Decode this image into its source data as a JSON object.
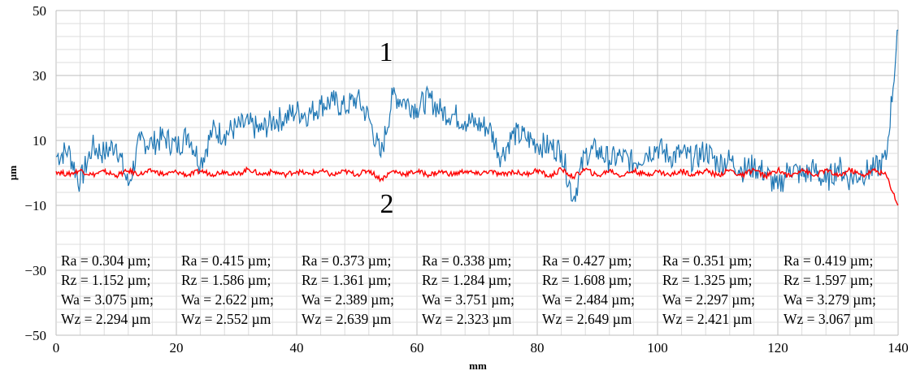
{
  "chart_data": {
    "type": "line",
    "xlabel": "mm",
    "ylabel": "µm",
    "xlim": [
      0,
      140
    ],
    "ylim": [
      -50,
      50
    ],
    "xticks": [
      "0",
      "20",
      "40",
      "60",
      "80",
      "100",
      "120",
      "140"
    ],
    "yticks": [
      "50",
      "30",
      "10",
      "−10",
      "−30",
      "−50"
    ],
    "grid": true,
    "curve_labels": [
      "1",
      "2"
    ],
    "colors": {
      "series1": "#1f77b4",
      "series2": "#ff0000",
      "grid": "#c8c8c8"
    },
    "x": [
      0,
      2,
      4,
      6,
      8,
      10,
      12,
      14,
      16,
      18,
      20,
      22,
      24,
      26,
      28,
      30,
      32,
      34,
      36,
      38,
      40,
      42,
      44,
      46,
      48,
      50,
      52,
      54,
      56,
      58,
      60,
      62,
      64,
      66,
      68,
      70,
      72,
      74,
      76,
      78,
      80,
      82,
      84,
      86,
      88,
      90,
      92,
      94,
      96,
      98,
      100,
      102,
      104,
      106,
      108,
      110,
      112,
      114,
      116,
      118,
      120,
      122,
      124,
      126,
      128,
      130,
      132,
      134,
      136,
      138,
      140
    ],
    "series": [
      {
        "values": [
          5,
          7,
          -3,
          8,
          6,
          9,
          -4,
          10,
          9,
          11,
          8,
          12,
          3,
          13,
          12,
          14,
          15,
          13,
          16,
          17,
          19,
          18,
          21,
          22,
          20,
          23,
          17,
          5,
          24,
          22,
          20,
          23,
          19,
          18,
          16,
          15,
          14,
          5,
          12,
          11,
          9,
          8,
          7,
          -8,
          6,
          7,
          4,
          5,
          3,
          6,
          8,
          5,
          6,
          4,
          7,
          3,
          4,
          1,
          2,
          0,
          -5,
          2,
          -1,
          1,
          -3,
          2,
          -2,
          0,
          1,
          4,
          44
        ]
      },
      {
        "values": [
          0.5,
          -0.5,
          0.8,
          -0.6,
          0.4,
          -0.8,
          0.6,
          -0.4,
          0.7,
          -0.5,
          0.3,
          -0.7,
          0.6,
          -0.4,
          0.5,
          -0.6,
          1.2,
          -0.5,
          0.4,
          -0.6,
          0.5,
          -0.4,
          0.6,
          -0.7,
          0.5,
          -0.5,
          0.8,
          -2,
          0.6,
          -0.4,
          0.5,
          -0.6,
          0.4,
          -0.5,
          0.6,
          -0.4,
          0.5,
          -0.6,
          0.4,
          -0.5,
          0.9,
          -1.2,
          1.1,
          -1.3,
          1.2,
          -1.0,
          0.8,
          -0.9,
          0.7,
          -0.6,
          0.5,
          -0.7,
          0.6,
          -0.5,
          0.7,
          -0.8,
          0.9,
          -1.0,
          1.1,
          -1.2,
          1.0,
          -1.1,
          1.2,
          -1.0,
          0.9,
          -1.1,
          1.0,
          -0.9,
          0.8,
          -0.6,
          -10
        ]
      }
    ],
    "annotations": [
      [
        "Ra = 0.304 µm;",
        "Ra = 0.415 µm;",
        "Ra = 0.373 µm;",
        "Ra = 0.338 µm;",
        "Ra = 0.427 µm;",
        "Ra = 0.351 µm;",
        "Ra = 0.419 µm;"
      ],
      [
        "Rz = 1.152 µm;",
        "Rz = 1.586 µm;",
        "Rz = 1.361 µm;",
        "Rz = 1.284 µm;",
        "Rz = 1.608 µm;",
        "Rz = 1.325 µm;",
        "Rz = 1.597 µm;"
      ],
      [
        "Wa = 3.075 µm;",
        "Wa = 2.622 µm;",
        "Wa = 2.389 µm;",
        "Wa = 3.751 µm;",
        "Wa = 2.484 µm;",
        "Wa = 2.297 µm;",
        "Wa = 3.279 µm;"
      ],
      [
        "Wz = 2.294 µm",
        "Wz = 2.552 µm",
        "Wz = 2.639 µm",
        "Wz = 2.323 µm",
        "Wz = 2.649 µm",
        "Wz = 2.421 µm",
        "Wz = 3.067 µm"
      ]
    ]
  }
}
